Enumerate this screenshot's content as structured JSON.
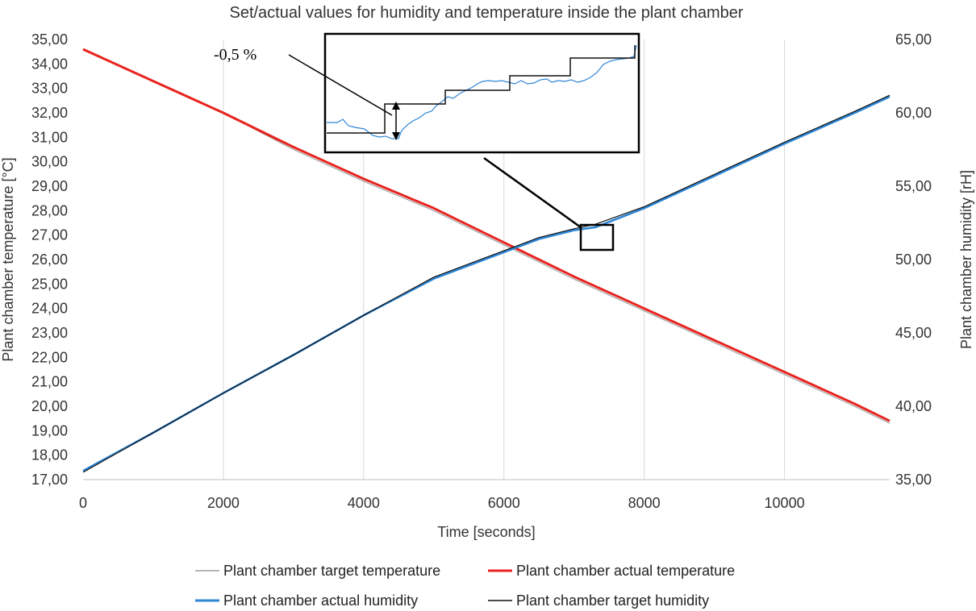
{
  "chart_data": {
    "type": "line",
    "title": "Set/actual values for humidity and temperature inside the plant chamber",
    "xlabel": "Time [seconds]",
    "ylabel_left": "Plant chamber temperature [°C]",
    "ylabel_right": "Plant chamber humidity [rH]",
    "xlim": [
      0,
      11500
    ],
    "ylim_left": [
      17,
      35
    ],
    "ylim_right": [
      35,
      65
    ],
    "x_ticks": [
      "0",
      "2000",
      "4000",
      "6000",
      "8000",
      "10000"
    ],
    "y_left_ticks": [
      "17,00",
      "18,00",
      "19,00",
      "20,00",
      "21,00",
      "22,00",
      "23,00",
      "24,00",
      "25,00",
      "26,00",
      "27,00",
      "28,00",
      "29,00",
      "30,00",
      "31,00",
      "32,00",
      "33,00",
      "34,00",
      "35,00"
    ],
    "y_right_ticks": [
      "35,00",
      "40,00",
      "45,00",
      "50,00",
      "55,00",
      "60,00",
      "65,00"
    ],
    "grid": "vertical",
    "legend_position": "bottom",
    "series": [
      {
        "name": "Plant chamber target temperature",
        "axis": "left",
        "color": "#9e9e9e",
        "x": [
          0,
          1000,
          2000,
          3000,
          4000,
          5000,
          6000,
          6500,
          7000,
          8000,
          9000,
          10000,
          11000,
          11500
        ],
        "values": [
          34.6,
          33.3,
          32.0,
          30.5,
          29.2,
          28.0,
          26.6,
          25.9,
          25.2,
          23.9,
          22.6,
          21.3,
          20.0,
          19.3
        ]
      },
      {
        "name": "Plant chamber actual temperature",
        "axis": "left",
        "color": "#e8231e",
        "x": [
          0,
          1000,
          2000,
          3000,
          4000,
          5000,
          6000,
          6500,
          7000,
          8000,
          9000,
          10000,
          11000,
          11500
        ],
        "values": [
          34.6,
          33.3,
          32.0,
          30.6,
          29.3,
          28.1,
          26.7,
          26.0,
          25.3,
          24.0,
          22.7,
          21.4,
          20.1,
          19.4
        ]
      },
      {
        "name": "Plant chamber actual humidity",
        "axis": "right",
        "color": "#2e86d6",
        "x": [
          0,
          1000,
          2000,
          3000,
          4000,
          5000,
          6000,
          6500,
          7000,
          7300,
          8000,
          9000,
          10000,
          11000,
          11500
        ],
        "values": [
          35.6,
          38.2,
          40.9,
          43.5,
          46.2,
          48.7,
          50.5,
          51.4,
          52.0,
          52.2,
          53.5,
          55.7,
          57.9,
          60.0,
          61.1
        ]
      },
      {
        "name": "Plant chamber target humidity",
        "axis": "right",
        "color": "#111111",
        "x": [
          0,
          1000,
          2000,
          3000,
          4000,
          5000,
          6000,
          6500,
          7000,
          7300,
          8000,
          9000,
          10000,
          11000,
          11500
        ],
        "values": [
          35.5,
          38.2,
          40.9,
          43.5,
          46.2,
          48.8,
          50.6,
          51.5,
          52.1,
          52.4,
          53.6,
          55.8,
          58.0,
          60.1,
          61.2
        ]
      }
    ],
    "annotation": {
      "text": "-0,5 %"
    }
  }
}
